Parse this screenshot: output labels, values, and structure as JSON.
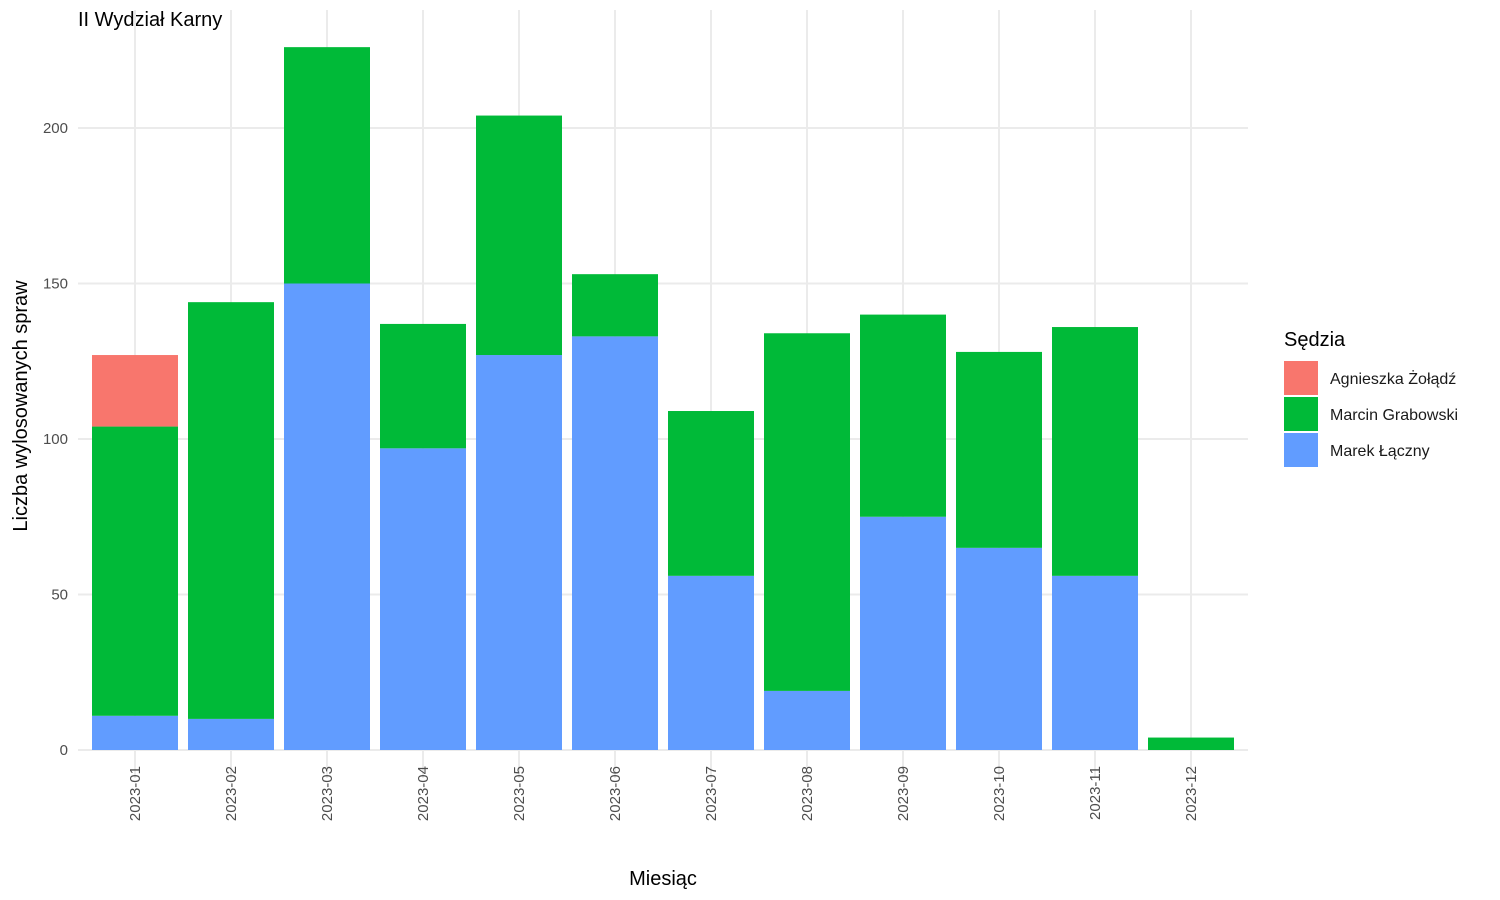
{
  "chart_data": {
    "type": "bar",
    "stacked": true,
    "title": "II Wydział Karny",
    "xlabel": "Miesiąc",
    "ylabel": "Liczba wylosowanych spraw",
    "ylim": [
      0,
      230
    ],
    "yticks": [
      0,
      50,
      100,
      150,
      200
    ],
    "grid": true,
    "legend": {
      "title": "Sędzia",
      "position": "right"
    },
    "categories": [
      "2023-01",
      "2023-02",
      "2023-03",
      "2023-04",
      "2023-05",
      "2023-06",
      "2023-07",
      "2023-08",
      "2023-09",
      "2023-10",
      "2023-11",
      "2023-12"
    ],
    "series": [
      {
        "name": "Marek Łączny",
        "color": "#619CFF",
        "values": [
          11,
          10,
          150,
          97,
          127,
          133,
          56,
          19,
          75,
          65,
          56,
          0
        ]
      },
      {
        "name": "Marcin Grabowski",
        "color": "#00BA38",
        "values": [
          93,
          134,
          76,
          40,
          77,
          20,
          53,
          115,
          65,
          63,
          80,
          4
        ]
      },
      {
        "name": "Agnieszka Żołądź",
        "color": "#F8766D",
        "values": [
          23,
          0,
          0,
          0,
          0,
          0,
          0,
          0,
          0,
          0,
          0,
          0
        ]
      }
    ],
    "legend_order": [
      "Agnieszka Żołądź",
      "Marcin Grabowski",
      "Marek Łączny"
    ]
  }
}
